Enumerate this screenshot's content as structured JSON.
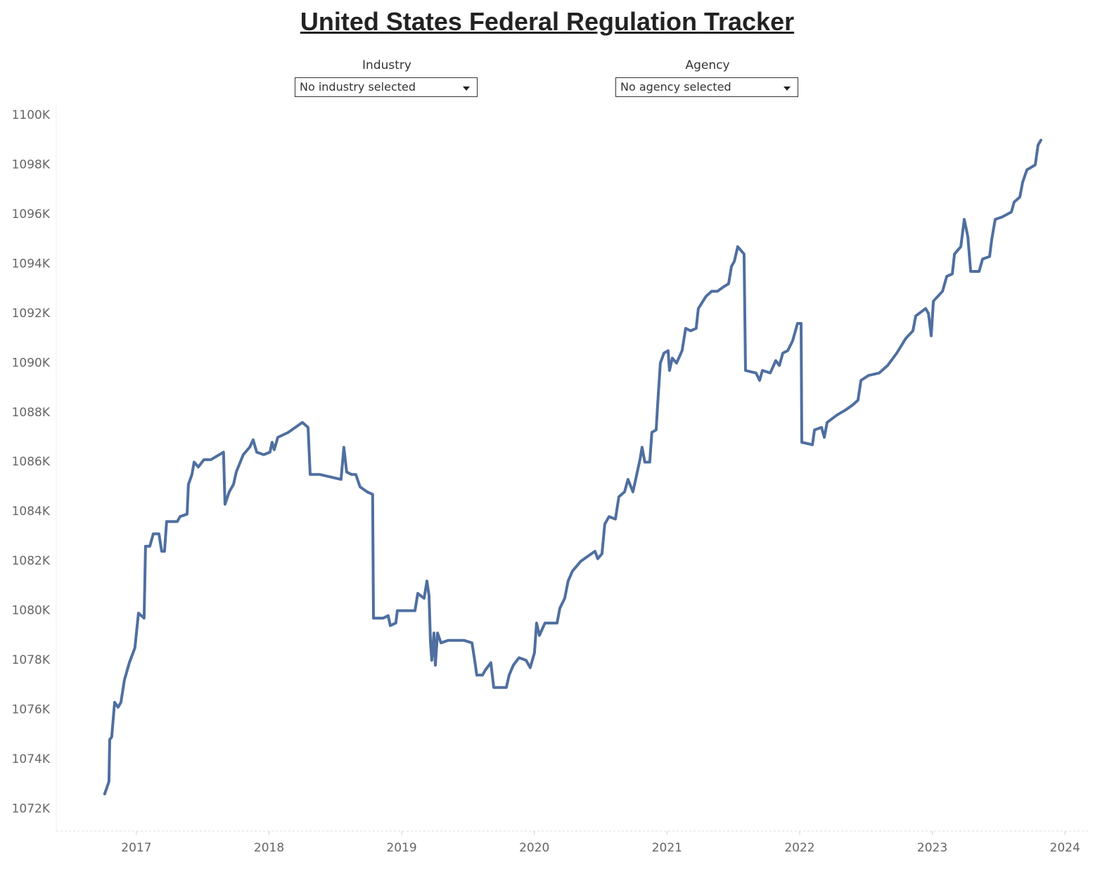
{
  "chart_data": {
    "type": "line",
    "title": "United States Federal Regulation Tracker",
    "filters": [
      {
        "label": "Industry",
        "value": "No industry selected"
      },
      {
        "label": "Agency",
        "value": "No agency selected"
      }
    ],
    "color": "#4f6fa0",
    "grid": false,
    "xlim": [
      2016.396,
      2024.19
    ],
    "xticks": [
      2017,
      2018,
      2019,
      2020,
      2021,
      2022,
      2023,
      2024
    ],
    "ylim": [
      1071100,
      1100400
    ],
    "yticks": [
      {
        "value": 1072000,
        "label": "1072K"
      },
      {
        "value": 1074000,
        "label": "1074K"
      },
      {
        "value": 1076000,
        "label": "1076K"
      },
      {
        "value": 1078000,
        "label": "1078K"
      },
      {
        "value": 1080000,
        "label": "1080K"
      },
      {
        "value": 1082000,
        "label": "1082K"
      },
      {
        "value": 1084000,
        "label": "1084K"
      },
      {
        "value": 1086000,
        "label": "1086K"
      },
      {
        "value": 1088000,
        "label": "1088K"
      },
      {
        "value": 1090000,
        "label": "1090K"
      },
      {
        "value": 1092000,
        "label": "1092K"
      },
      {
        "value": 1094000,
        "label": "1094K"
      },
      {
        "value": 1096000,
        "label": "1096K"
      },
      {
        "value": 1098000,
        "label": "1098K"
      },
      {
        "value": 1100000,
        "label": "1100K"
      }
    ],
    "x": [
      2016.761,
      2016.793,
      2016.799,
      2016.814,
      2016.836,
      2016.862,
      2016.883,
      2016.91,
      2016.947,
      2016.989,
      2017.016,
      2017.058,
      2017.069,
      2017.101,
      2017.127,
      2017.17,
      2017.191,
      2017.212,
      2017.228,
      2017.308,
      2017.329,
      2017.382,
      2017.392,
      2017.419,
      2017.435,
      2017.467,
      2017.509,
      2017.562,
      2017.657,
      2017.668,
      2017.7,
      2017.732,
      2017.753,
      2017.806,
      2017.854,
      2017.88,
      2017.907,
      2017.96,
      2018.007,
      2018.023,
      2018.039,
      2018.066,
      2018.145,
      2018.198,
      2018.251,
      2018.294,
      2018.31,
      2018.384,
      2018.463,
      2018.543,
      2018.564,
      2018.585,
      2018.622,
      2018.654,
      2018.686,
      2018.739,
      2018.781,
      2018.787,
      2018.861,
      2018.898,
      2018.914,
      2018.956,
      2018.967,
      2019.1,
      2019.121,
      2019.169,
      2019.19,
      2019.206,
      2019.217,
      2019.227,
      2019.243,
      2019.254,
      2019.27,
      2019.296,
      2019.349,
      2019.471,
      2019.53,
      2019.55,
      2019.566,
      2019.609,
      2019.63,
      2019.672,
      2019.694,
      2019.789,
      2019.81,
      2019.842,
      2019.884,
      2019.937,
      2019.969,
      2020.001,
      2020.017,
      2020.038,
      2020.08,
      2020.171,
      2020.192,
      2020.229,
      2020.255,
      2020.287,
      2020.351,
      2020.457,
      2020.478,
      2020.51,
      2020.531,
      2020.563,
      2020.611,
      2020.637,
      2020.68,
      2020.706,
      2020.743,
      2020.764,
      2020.796,
      2020.812,
      2020.833,
      2020.87,
      2020.886,
      2020.918,
      2020.934,
      2020.95,
      2020.977,
      2021.008,
      2021.019,
      2021.04,
      2021.072,
      2021.114,
      2021.141,
      2021.178,
      2021.22,
      2021.236,
      2021.295,
      2021.337,
      2021.38,
      2021.433,
      2021.464,
      2021.486,
      2021.507,
      2021.533,
      2021.581,
      2021.592,
      2021.671,
      2021.698,
      2021.719,
      2021.778,
      2021.82,
      2021.847,
      2021.873,
      2021.91,
      2021.947,
      2021.984,
      2022.011,
      2022.016,
      2022.096,
      2022.112,
      2022.165,
      2022.186,
      2022.207,
      2022.281,
      2022.345,
      2022.398,
      2022.44,
      2022.462,
      2022.52,
      2022.6,
      2022.663,
      2022.732,
      2022.801,
      2022.854,
      2022.875,
      2022.95,
      2022.971,
      2022.992,
      2023.008,
      2023.077,
      2023.109,
      2023.151,
      2023.167,
      2023.215,
      2023.241,
      2023.268,
      2023.289,
      2023.353,
      2023.379,
      2023.432,
      2023.448,
      2023.474,
      2023.527,
      2023.596,
      2023.617,
      2023.66,
      2023.681,
      2023.713,
      2023.776,
      2023.797,
      2023.819
    ],
    "values": [
      1072600,
      1073100,
      1074800,
      1074900,
      1076300,
      1076100,
      1076300,
      1077200,
      1077900,
      1078500,
      1079900,
      1079700,
      1082600,
      1082600,
      1083100,
      1083100,
      1082400,
      1082400,
      1083600,
      1083600,
      1083800,
      1083900,
      1085100,
      1085500,
      1086000,
      1085800,
      1086100,
      1086100,
      1086400,
      1084300,
      1084800,
      1085100,
      1085600,
      1086300,
      1086600,
      1086900,
      1086400,
      1086300,
      1086400,
      1086800,
      1086500,
      1087000,
      1087200,
      1087400,
      1087600,
      1087400,
      1085500,
      1085500,
      1085400,
      1085300,
      1086600,
      1085600,
      1085500,
      1085500,
      1085000,
      1084800,
      1084700,
      1079700,
      1079700,
      1079800,
      1079400,
      1079500,
      1080000,
      1080000,
      1080700,
      1080500,
      1081200,
      1080600,
      1078700,
      1078000,
      1079100,
      1077800,
      1079100,
      1078700,
      1078800,
      1078800,
      1078700,
      1078000,
      1077400,
      1077400,
      1077600,
      1077900,
      1076900,
      1076900,
      1077400,
      1077800,
      1078100,
      1078000,
      1077700,
      1078300,
      1079500,
      1079000,
      1079500,
      1079500,
      1080100,
      1080500,
      1081200,
      1081600,
      1082000,
      1082400,
      1082100,
      1082300,
      1083500,
      1083800,
      1083700,
      1084600,
      1084800,
      1085300,
      1084800,
      1085300,
      1086100,
      1086600,
      1086000,
      1086000,
      1087200,
      1087300,
      1088700,
      1090000,
      1090400,
      1090500,
      1089700,
      1090200,
      1090000,
      1090500,
      1091400,
      1091300,
      1091400,
      1092200,
      1092700,
      1092900,
      1092900,
      1093100,
      1093200,
      1093900,
      1094100,
      1094700,
      1094400,
      1089700,
      1089600,
      1089300,
      1089700,
      1089600,
      1090100,
      1089900,
      1090400,
      1090500,
      1090900,
      1091600,
      1091600,
      1086800,
      1086700,
      1087300,
      1087400,
      1087000,
      1087600,
      1087900,
      1088100,
      1088300,
      1088500,
      1089300,
      1089500,
      1089600,
      1089900,
      1090400,
      1091000,
      1091300,
      1091900,
      1092200,
      1092000,
      1091100,
      1092500,
      1092900,
      1093500,
      1093600,
      1094400,
      1094700,
      1095800,
      1095100,
      1093700,
      1093700,
      1094200,
      1094300,
      1095000,
      1095800,
      1095900,
      1096100,
      1096500,
      1096700,
      1097300,
      1097800,
      1098000,
      1098800,
      1099000
    ]
  }
}
